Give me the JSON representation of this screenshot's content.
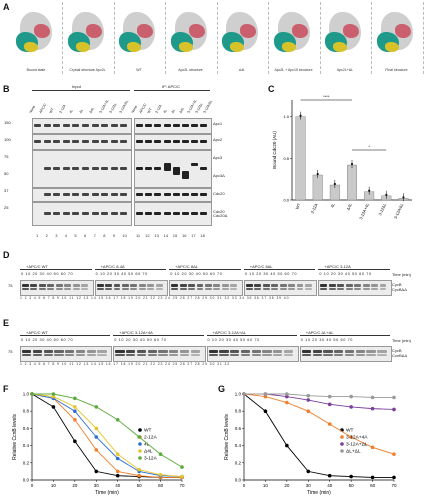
{
  "panels": {
    "A": "A",
    "B": "B",
    "C": "C",
    "D": "D",
    "E": "E",
    "F": "F",
    "G": "G"
  },
  "panelA": {
    "structures": [
      {
        "caption": "Bound state"
      },
      {
        "caption": "Crystal structure Apc2L"
      },
      {
        "caption": "WT"
      },
      {
        "caption": "Apc2L structure"
      },
      {
        "caption": "Δ4L"
      },
      {
        "caption": "Apc2L + Apc15 structure"
      },
      {
        "caption": "Apc2L+ΔL"
      },
      {
        "caption": "Final structure"
      }
    ]
  },
  "panelB": {
    "input_label": "Input",
    "ip_label": "IP: APC/C",
    "lane_headers": [
      "None",
      "APC/C",
      "WT",
      "2-12A",
      "4L",
      "ΔL",
      "Δ4L",
      "3-12A+4L",
      "3-12ΔL",
      "3-12A/ΔL"
    ],
    "mw": [
      "150",
      "100",
      "75",
      "50",
      "37",
      "25"
    ],
    "bands": [
      "Apc1",
      "Apc2",
      "Apc3",
      "Apc3Δ",
      "Cdc20",
      "Cdc20\nCdc20Δ"
    ],
    "lane_numbers_left": [
      "1",
      "2",
      "3",
      "4",
      "5",
      "6",
      "7",
      "8",
      "9",
      "10"
    ],
    "lane_numbers_right": [
      "11",
      "12",
      "13",
      "14",
      "15",
      "16",
      "17",
      "18"
    ]
  },
  "panelC": {
    "ylabel": "Bound Cdc20 (AU)",
    "sig": [
      "****",
      "*"
    ],
    "categories": [
      "WT",
      "2-12A",
      "4L",
      "Δ4L",
      "3-12A+4L",
      "3-12ΔL",
      "3-12A/ΔL"
    ]
  },
  "chart_data": [
    {
      "type": "bar",
      "title": "",
      "ylabel": "Bound Cdc20 (AU)",
      "categories": [
        "WT",
        "2-12A",
        "4L",
        "Δ4L",
        "3-12A+4L",
        "3-12ΔL",
        "3-12A/ΔL"
      ],
      "values": [
        1.0,
        0.3,
        0.18,
        0.42,
        0.1,
        0.05,
        0.02
      ],
      "ylim": [
        0,
        1.2
      ]
    },
    {
      "type": "line",
      "title": "",
      "xlabel": "Time (min)",
      "ylabel": "Relative CcnB levels",
      "x": [
        0,
        10,
        20,
        30,
        40,
        50,
        60,
        70
      ],
      "series": [
        {
          "name": "WT",
          "color": "#000000",
          "values": [
            1.0,
            0.85,
            0.45,
            0.1,
            0.05,
            0.04,
            0.03,
            0.03
          ]
        },
        {
          "name": "2-12A",
          "color": "#f07f2b",
          "values": [
            1.0,
            0.95,
            0.7,
            0.35,
            0.1,
            0.05,
            0.03,
            0.03
          ]
        },
        {
          "name": "4L",
          "color": "#2b6fd1",
          "values": [
            1.0,
            0.95,
            0.8,
            0.5,
            0.25,
            0.1,
            0.05,
            0.04
          ]
        },
        {
          "name": "Δ4L",
          "color": "#e7c42c",
          "values": [
            1.0,
            0.97,
            0.85,
            0.6,
            0.3,
            0.12,
            0.06,
            0.04
          ]
        },
        {
          "name": "3-12A",
          "color": "#5bab3b",
          "values": [
            1.0,
            1.0,
            0.95,
            0.85,
            0.7,
            0.5,
            0.3,
            0.15
          ]
        }
      ],
      "ylim": [
        0,
        1.0
      ]
    },
    {
      "type": "line",
      "title": "",
      "xlabel": "Time (min)",
      "ylabel": "Relative CcnB levels",
      "x": [
        0,
        10,
        20,
        30,
        40,
        50,
        60,
        70
      ],
      "series": [
        {
          "name": "WT",
          "color": "#000000",
          "values": [
            1.0,
            0.8,
            0.4,
            0.1,
            0.05,
            0.04,
            0.03,
            0.03
          ]
        },
        {
          "name": "3-12A+4A",
          "color": "#f07f2b",
          "values": [
            1.0,
            0.97,
            0.9,
            0.8,
            0.65,
            0.5,
            0.38,
            0.3
          ]
        },
        {
          "name": "3-12A+ΔL",
          "color": "#7a3f9e",
          "values": [
            1.0,
            1.0,
            0.97,
            0.93,
            0.88,
            0.85,
            0.83,
            0.82
          ]
        },
        {
          "name": "ΔL+ΔL",
          "color": "#9a9a9a",
          "values": [
            1.0,
            1.0,
            1.0,
            0.98,
            0.97,
            0.97,
            0.96,
            0.96
          ]
        }
      ],
      "ylim": [
        0,
        1.0
      ]
    }
  ],
  "panelD": {
    "conditions": [
      "+APC/C WT",
      "+APC/C 8-4A",
      "+APC/C 8ΔL",
      "+APC/C 8ΔL",
      "+APC/C 3-12A"
    ],
    "times": "0 10 20 30 40 50 60 70",
    "time_label": "Time (min)",
    "mw": "75",
    "band_label": "CycB\nCycBΔΔ",
    "lane_numbers": "1 2 3 4 5 6 7 8 9 10 11 12 13 14 15 16 17 18 19 20 21 22 23 24 25 26 27 28 29 30 31 32 33 34 35 36 37 38 39 40"
  },
  "panelE": {
    "conditions": [
      "+APC/C WT",
      "+APC/C 3-12A+4A",
      "+APC/C 3-12A+ΔL",
      "+APC/C ΔL+ΔL"
    ],
    "times": "0 10 20 30 40 50 60 70",
    "time_label": "Time (min)",
    "mw": "75",
    "band_label": "CycB\nCcnBΔΔ",
    "lane_numbers": "1 2 3 4 5 6 7 8 9 10 11 12 13 14 15 16 17 18 19 20 21 22 23 24 25 26 27 28 29 30 31 32"
  },
  "panelF": {
    "ylabel": "Relative CcnB levels",
    "xlabel": "Time (min)"
  },
  "panelG": {
    "ylabel": "Relative CcnB levels",
    "xlabel": "Time (min)"
  }
}
